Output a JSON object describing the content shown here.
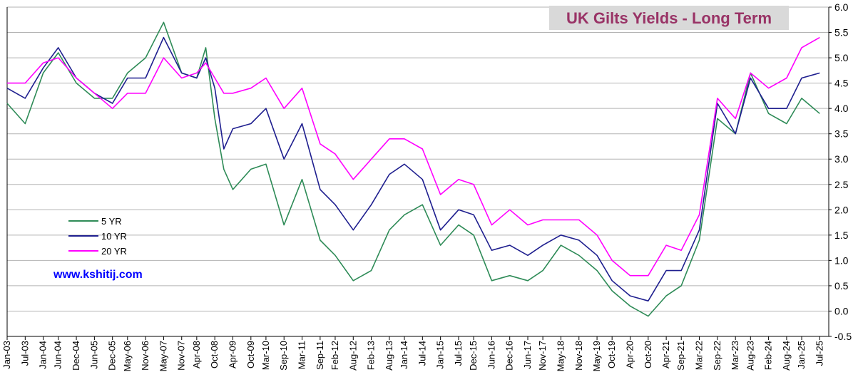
{
  "chart_data": {
    "type": "line",
    "title": "UK Gilts Yields - Long Term",
    "website": "www.kshitij.com",
    "ylim": [
      -0.5,
      6.0
    ],
    "y_ticks": [
      "6.0",
      "5.5",
      "5.0",
      "4.5",
      "4.0",
      "3.5",
      "3.0",
      "2.5",
      "2.0",
      "1.5",
      "1.0",
      "0.5",
      "0.0",
      "-0.5"
    ],
    "y_axis_side": "right",
    "grid": "horizontal",
    "legend_position": "left-middle",
    "x_tick_labels": [
      "Jan-03",
      "Jul-03",
      "Jan-04",
      "Jun-04",
      "Dec-04",
      "Jun-05",
      "Dec-05",
      "May-06",
      "Nov-06",
      "May-07",
      "Nov-07",
      "Apr-08",
      "Oct-08",
      "Apr-09",
      "Oct-09",
      "Mar-10",
      "Sep-10",
      "Mar-11",
      "Sep-11",
      "Feb-12",
      "Aug-12",
      "Feb-13",
      "Aug-13",
      "Jan-14",
      "Jul-14",
      "Jan-15",
      "Jul-15",
      "Dec-15",
      "Jun-16",
      "Dec-16",
      "Jun-17",
      "Nov-17",
      "May-18",
      "Nov-18",
      "May-19",
      "Oct-19",
      "Apr-20",
      "Oct-20",
      "Apr-21",
      "Sep-21",
      "Mar-22",
      "Sep-22",
      "Mar-23",
      "Aug-23",
      "Feb-24",
      "Aug-24",
      "Jan-25",
      "Jul-25"
    ],
    "x_range": [
      "Jan-03",
      "Oct-25"
    ],
    "colors": {
      "title_bg": "#d9d9d9",
      "title_text": "#993366",
      "website": "#0000ff",
      "grid": "#b3b3b3"
    },
    "series": [
      {
        "name": "5 YR",
        "color": "#2e8b57",
        "points": [
          [
            "Jan-03",
            4.1
          ],
          [
            "Jul-03",
            3.7
          ],
          [
            "Jan-04",
            4.7
          ],
          [
            "Jun-04",
            5.1
          ],
          [
            "Dec-04",
            4.5
          ],
          [
            "Jun-05",
            4.2
          ],
          [
            "Dec-05",
            4.2
          ],
          [
            "May-06",
            4.7
          ],
          [
            "Nov-06",
            5.0
          ],
          [
            "May-07",
            5.7
          ],
          [
            "Nov-07",
            4.7
          ],
          [
            "Apr-08",
            4.6
          ],
          [
            "Jul-08",
            5.2
          ],
          [
            "Oct-08",
            3.8
          ],
          [
            "Jan-09",
            2.8
          ],
          [
            "Apr-09",
            2.4
          ],
          [
            "Oct-09",
            2.8
          ],
          [
            "Mar-10",
            2.9
          ],
          [
            "Sep-10",
            1.7
          ],
          [
            "Mar-11",
            2.6
          ],
          [
            "Sep-11",
            1.4
          ],
          [
            "Feb-12",
            1.1
          ],
          [
            "Aug-12",
            0.6
          ],
          [
            "Feb-13",
            0.8
          ],
          [
            "Aug-13",
            1.6
          ],
          [
            "Jan-14",
            1.9
          ],
          [
            "Jul-14",
            2.1
          ],
          [
            "Jan-15",
            1.3
          ],
          [
            "Jul-15",
            1.7
          ],
          [
            "Dec-15",
            1.5
          ],
          [
            "Jun-16",
            0.6
          ],
          [
            "Dec-16",
            0.7
          ],
          [
            "Jun-17",
            0.6
          ],
          [
            "Nov-17",
            0.8
          ],
          [
            "May-18",
            1.3
          ],
          [
            "Nov-18",
            1.1
          ],
          [
            "May-19",
            0.8
          ],
          [
            "Oct-19",
            0.4
          ],
          [
            "Apr-20",
            0.1
          ],
          [
            "Oct-20",
            -0.1
          ],
          [
            "Apr-21",
            0.3
          ],
          [
            "Sep-21",
            0.5
          ],
          [
            "Mar-22",
            1.4
          ],
          [
            "Sep-22",
            3.8
          ],
          [
            "Mar-23",
            3.5
          ],
          [
            "Aug-23",
            4.7
          ],
          [
            "Feb-24",
            3.9
          ],
          [
            "Aug-24",
            3.7
          ],
          [
            "Jan-25",
            4.2
          ],
          [
            "Jul-25",
            3.9
          ]
        ]
      },
      {
        "name": "10 YR",
        "color": "#1f1f8f",
        "points": [
          [
            "Jan-03",
            4.4
          ],
          [
            "Jul-03",
            4.2
          ],
          [
            "Jan-04",
            4.8
          ],
          [
            "Jun-04",
            5.2
          ],
          [
            "Dec-04",
            4.6
          ],
          [
            "Jun-05",
            4.3
          ],
          [
            "Dec-05",
            4.1
          ],
          [
            "May-06",
            4.6
          ],
          [
            "Nov-06",
            4.6
          ],
          [
            "May-07",
            5.4
          ],
          [
            "Nov-07",
            4.7
          ],
          [
            "Apr-08",
            4.6
          ],
          [
            "Jul-08",
            5.0
          ],
          [
            "Oct-08",
            4.4
          ],
          [
            "Jan-09",
            3.2
          ],
          [
            "Apr-09",
            3.6
          ],
          [
            "Oct-09",
            3.7
          ],
          [
            "Mar-10",
            4.0
          ],
          [
            "Sep-10",
            3.0
          ],
          [
            "Mar-11",
            3.7
          ],
          [
            "Sep-11",
            2.4
          ],
          [
            "Feb-12",
            2.1
          ],
          [
            "Aug-12",
            1.6
          ],
          [
            "Feb-13",
            2.1
          ],
          [
            "Aug-13",
            2.7
          ],
          [
            "Jan-14",
            2.9
          ],
          [
            "Jul-14",
            2.6
          ],
          [
            "Jan-15",
            1.6
          ],
          [
            "Jul-15",
            2.0
          ],
          [
            "Dec-15",
            1.9
          ],
          [
            "Jun-16",
            1.2
          ],
          [
            "Dec-16",
            1.3
          ],
          [
            "Jun-17",
            1.1
          ],
          [
            "Nov-17",
            1.3
          ],
          [
            "May-18",
            1.5
          ],
          [
            "Nov-18",
            1.4
          ],
          [
            "May-19",
            1.1
          ],
          [
            "Oct-19",
            0.6
          ],
          [
            "Apr-20",
            0.3
          ],
          [
            "Oct-20",
            0.2
          ],
          [
            "Apr-21",
            0.8
          ],
          [
            "Sep-21",
            0.8
          ],
          [
            "Mar-22",
            1.6
          ],
          [
            "Sep-22",
            4.1
          ],
          [
            "Mar-23",
            3.5
          ],
          [
            "Aug-23",
            4.6
          ],
          [
            "Feb-24",
            4.0
          ],
          [
            "Aug-24",
            4.0
          ],
          [
            "Jan-25",
            4.6
          ],
          [
            "Jul-25",
            4.7
          ]
        ]
      },
      {
        "name": "20 YR",
        "color": "#ff00ff",
        "points": [
          [
            "Jan-03",
            4.5
          ],
          [
            "Jul-03",
            4.5
          ],
          [
            "Jan-04",
            4.9
          ],
          [
            "Jun-04",
            5.0
          ],
          [
            "Dec-04",
            4.6
          ],
          [
            "Jun-05",
            4.3
          ],
          [
            "Dec-05",
            4.0
          ],
          [
            "May-06",
            4.3
          ],
          [
            "Nov-06",
            4.3
          ],
          [
            "May-07",
            5.0
          ],
          [
            "Nov-07",
            4.6
          ],
          [
            "Apr-08",
            4.7
          ],
          [
            "Jul-08",
            4.9
          ],
          [
            "Oct-08",
            4.6
          ],
          [
            "Jan-09",
            4.3
          ],
          [
            "Apr-09",
            4.3
          ],
          [
            "Oct-09",
            4.4
          ],
          [
            "Mar-10",
            4.6
          ],
          [
            "Sep-10",
            4.0
          ],
          [
            "Mar-11",
            4.4
          ],
          [
            "Sep-11",
            3.3
          ],
          [
            "Feb-12",
            3.1
          ],
          [
            "Aug-12",
            2.6
          ],
          [
            "Feb-13",
            3.0
          ],
          [
            "Aug-13",
            3.4
          ],
          [
            "Jan-14",
            3.4
          ],
          [
            "Jul-14",
            3.2
          ],
          [
            "Jan-15",
            2.3
          ],
          [
            "Jul-15",
            2.6
          ],
          [
            "Dec-15",
            2.5
          ],
          [
            "Jun-16",
            1.7
          ],
          [
            "Dec-16",
            2.0
          ],
          [
            "Jun-17",
            1.7
          ],
          [
            "Nov-17",
            1.8
          ],
          [
            "May-18",
            1.8
          ],
          [
            "Nov-18",
            1.8
          ],
          [
            "May-19",
            1.5
          ],
          [
            "Oct-19",
            1.0
          ],
          [
            "Apr-20",
            0.7
          ],
          [
            "Oct-20",
            0.7
          ],
          [
            "Apr-21",
            1.3
          ],
          [
            "Sep-21",
            1.2
          ],
          [
            "Mar-22",
            1.9
          ],
          [
            "Sep-22",
            4.2
          ],
          [
            "Mar-23",
            3.8
          ],
          [
            "Aug-23",
            4.7
          ],
          [
            "Feb-24",
            4.4
          ],
          [
            "Aug-24",
            4.6
          ],
          [
            "Jan-25",
            5.2
          ],
          [
            "Jul-25",
            5.4
          ]
        ]
      }
    ]
  }
}
